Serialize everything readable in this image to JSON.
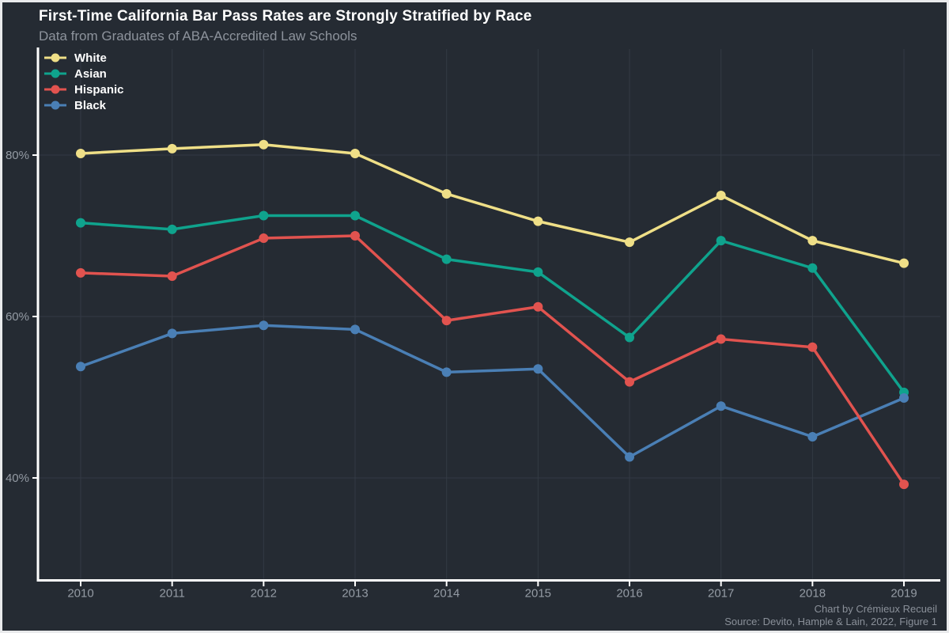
{
  "header": {
    "title": "First-Time California Bar Pass Rates are Strongly Stratified by Race",
    "subtitle": "Data from Graduates of ABA-Accredited Law Schools"
  },
  "caption": {
    "line1": "Chart by Crémieux Recueil",
    "line2": "Source: Devito, Hample & Lain, 2022, Figure 1"
  },
  "colors": {
    "background": "#252B33",
    "frame": "#E9EAEC",
    "axis": "#FFFFFF",
    "grid": "#333A44",
    "tick_label": "#949BA4",
    "title": "#FFFFFF",
    "subtitle": "#8D939C",
    "caption": "#8A9099"
  },
  "chart_data": {
    "type": "line",
    "title": "First-Time California Bar Pass Rates are Strongly Stratified by Race",
    "subtitle": "Data from Graduates of ABA-Accredited Law Schools",
    "xlabel": "",
    "ylabel": "",
    "x": [
      2010,
      2011,
      2012,
      2013,
      2014,
      2015,
      2016,
      2017,
      2018,
      2019
    ],
    "series": [
      {
        "name": "White",
        "color": "#EFDF87",
        "values": [
          80.2,
          80.8,
          81.3,
          80.2,
          75.2,
          71.8,
          69.2,
          75.0,
          69.4,
          66.6
        ]
      },
      {
        "name": "Asian",
        "color": "#0FA38D",
        "values": [
          71.6,
          70.8,
          72.5,
          72.5,
          67.1,
          65.5,
          57.4,
          69.4,
          66.0,
          50.6
        ]
      },
      {
        "name": "Hispanic",
        "color": "#E1534F",
        "values": [
          65.4,
          65.0,
          69.7,
          70.0,
          59.5,
          61.2,
          51.9,
          57.2,
          56.2,
          39.2
        ]
      },
      {
        "name": "Black",
        "color": "#4A7FB5",
        "values": [
          53.8,
          57.9,
          58.9,
          58.4,
          53.1,
          53.5,
          42.6,
          48.9,
          45.1,
          49.9
        ]
      }
    ],
    "yticks": [
      {
        "value": 40,
        "label": "40%"
      },
      {
        "value": 60,
        "label": "60%"
      },
      {
        "value": 80,
        "label": "80%"
      }
    ],
    "ylim": [
      27,
      93
    ],
    "grid": true,
    "legend_position": "top-left"
  }
}
